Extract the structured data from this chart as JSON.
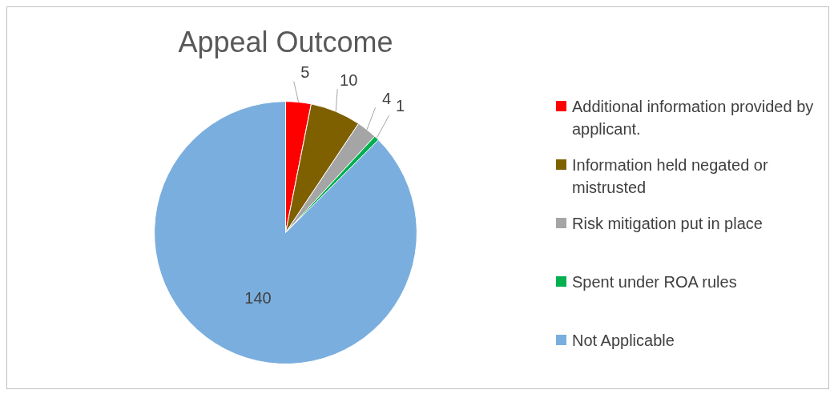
{
  "chart_data": {
    "type": "pie",
    "title": "Appeal Outcome",
    "categories": [
      "Additional information provided by applicant.",
      "Information held negated or mistrusted",
      "Risk mitigation put in place",
      "Spent under ROA rules",
      "Not Applicable"
    ],
    "values": [
      5,
      10,
      4,
      1,
      140
    ],
    "colors": [
      "#ff0000",
      "#7f6000",
      "#a5a5a5",
      "#00b050",
      "#7aaede"
    ],
    "data_labels": true,
    "legend": "right"
  }
}
